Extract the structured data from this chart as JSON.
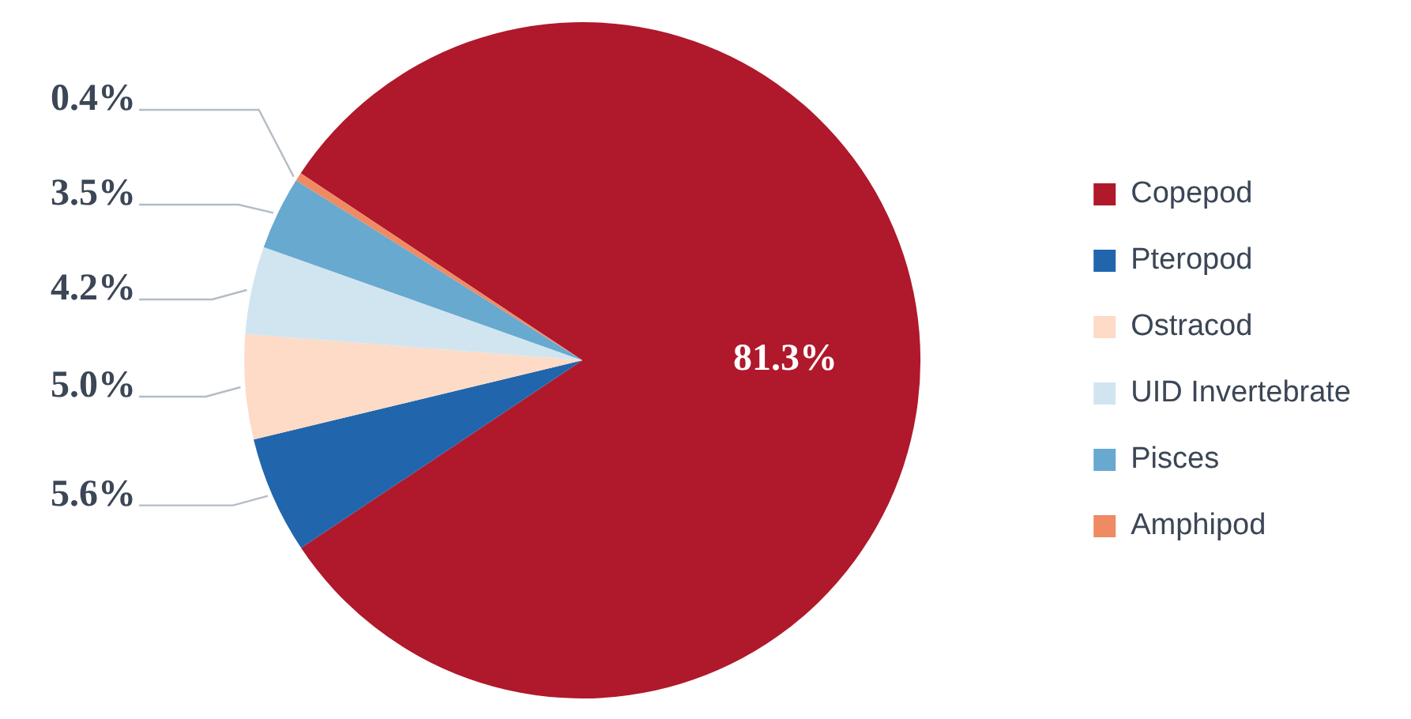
{
  "chart_data": {
    "type": "pie",
    "categories": [
      "Copepod",
      "Pteropod",
      "Ostracod",
      "UID Invertebrate",
      "Pisces",
      "Amphipod"
    ],
    "values": [
      81.3,
      5.6,
      5.0,
      4.2,
      3.5,
      0.4
    ],
    "colors": [
      "#b0182b",
      "#2166ac",
      "#fddbc7",
      "#d1e5f0",
      "#67a9cf",
      "#ef8a62"
    ],
    "value_labels": [
      "81.3%",
      "5.6%",
      "5.0%",
      "4.2%",
      "3.5%",
      "0.4%"
    ],
    "legend": "right"
  }
}
